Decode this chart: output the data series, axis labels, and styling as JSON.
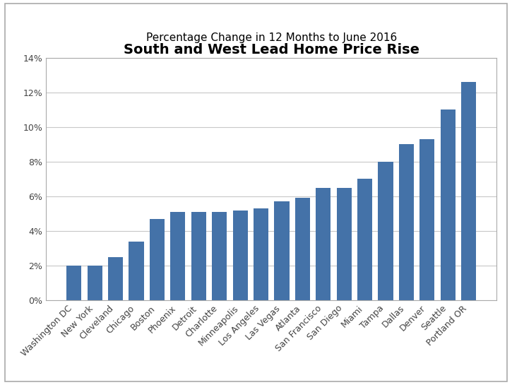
{
  "title": "South and West Lead Home Price Rise",
  "subtitle": "Percentage Change in 12 Months to June 2016",
  "categories": [
    "Washington DC",
    "New York",
    "Cleveland",
    "Chicago",
    "Boston",
    "Phoenix",
    "Detroit",
    "Charlotte",
    "Minneapolis",
    "Los Angeles",
    "Las Vegas",
    "Atlanta",
    "San Francisco",
    "San Diego",
    "Miami",
    "Tampa",
    "Dallas",
    "Denver",
    "Seattle",
    "Portland OR"
  ],
  "values": [
    2.0,
    2.0,
    2.5,
    3.4,
    4.7,
    5.1,
    5.1,
    5.1,
    5.2,
    5.3,
    5.7,
    5.9,
    6.5,
    6.5,
    7.0,
    8.0,
    9.0,
    9.3,
    11.0,
    12.6
  ],
  "bar_color": "#4472a8",
  "ylim": [
    0,
    14
  ],
  "yticks": [
    0,
    2,
    4,
    6,
    8,
    10,
    12,
    14
  ],
  "ytick_labels": [
    "0%",
    "2%",
    "4%",
    "6%",
    "8%",
    "10%",
    "12%",
    "14%"
  ],
  "background_color": "#ffffff",
  "title_fontsize": 14,
  "subtitle_fontsize": 11,
  "tick_label_fontsize": 9,
  "grid_color": "#c8c8c8",
  "spine_color": "#aaaaaa",
  "outer_border_color": "#aaaaaa"
}
